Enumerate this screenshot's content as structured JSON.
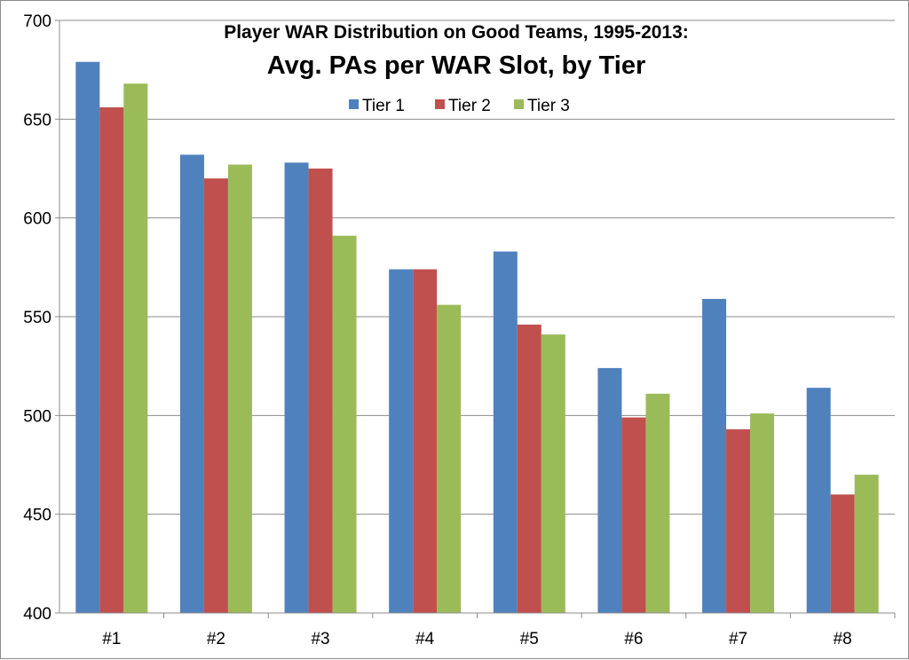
{
  "chart_data": {
    "type": "bar",
    "title": "Player WAR Distribution on Good Teams, 1995-2013:",
    "subtitle": "Avg. PAs per WAR Slot, by Tier",
    "categories": [
      "#1",
      "#2",
      "#3",
      "#4",
      "#5",
      "#6",
      "#7",
      "#8"
    ],
    "series": [
      {
        "name": "Tier 1",
        "color": "#4f81bd",
        "values": [
          679,
          632,
          628,
          574,
          583,
          524,
          559,
          514
        ]
      },
      {
        "name": "Tier 2",
        "color": "#c0504d",
        "values": [
          656,
          620,
          625,
          574,
          546,
          499,
          493,
          460
        ]
      },
      {
        "name": "Tier 3",
        "color": "#9bbb59",
        "values": [
          668,
          627,
          591,
          556,
          541,
          511,
          501,
          470
        ]
      }
    ],
    "ylim": [
      400,
      700
    ],
    "yticks": [
      400,
      450,
      500,
      550,
      600,
      650,
      700
    ],
    "grid": true,
    "legend_position": "top"
  }
}
